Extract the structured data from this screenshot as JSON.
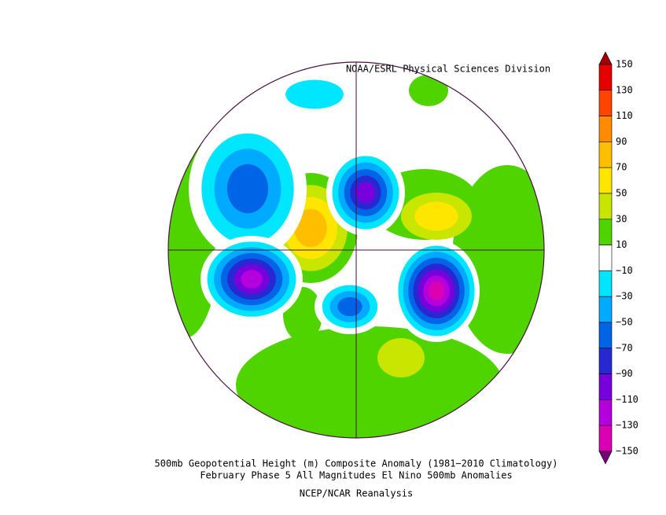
{
  "header": {
    "credit": "NOAA/ESRL Physical Sciences Division"
  },
  "caption": {
    "line1": "500mb Geopotential Height (m) Composite Anomaly (1981−2010 Climatology)",
    "line2": "February Phase 5 All Magnitudes El Nino 500mb Anomalies",
    "line3": "NCEP/NCAR Reanalysis"
  },
  "colorbar": {
    "labels": [
      "150",
      "130",
      "110",
      "90",
      "70",
      "50",
      "30",
      "10",
      "−10",
      "−30",
      "−50",
      "−70",
      "−90",
      "−110",
      "−130",
      "−150"
    ],
    "colors": [
      "#a00000",
      "#e60000",
      "#ff4400",
      "#ff8c00",
      "#ffbf00",
      "#ffe600",
      "#c8e600",
      "#4fd400",
      "#ffffff",
      "#00e6ff",
      "#00aaff",
      "#0064e6",
      "#2828d2",
      "#7800dc",
      "#b400dc",
      "#dc00b4",
      "#780078"
    ]
  }
}
